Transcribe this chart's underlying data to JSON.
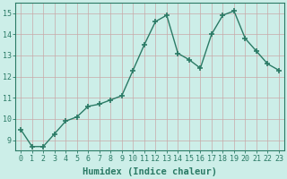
{
  "x": [
    0,
    1,
    2,
    3,
    4,
    5,
    6,
    7,
    8,
    9,
    10,
    11,
    12,
    13,
    14,
    15,
    16,
    17,
    18,
    19,
    20,
    21,
    22,
    23
  ],
  "y": [
    9.5,
    8.7,
    8.7,
    9.3,
    9.9,
    10.1,
    10.6,
    10.7,
    10.9,
    11.1,
    12.3,
    13.5,
    14.6,
    14.9,
    13.1,
    12.8,
    12.4,
    14.0,
    14.9,
    15.1,
    13.8,
    13.2,
    12.6,
    12.3
  ],
  "line_color": "#2a7a65",
  "marker": "+",
  "marker_size": 4,
  "marker_lw": 1.2,
  "bg_color": "#cceee8",
  "grid_color": "#c8a8a8",
  "xlabel": "Humidex (Indice chaleur)",
  "ylim": [
    8.5,
    15.5
  ],
  "xlim": [
    -0.5,
    23.5
  ],
  "yticks": [
    9,
    10,
    11,
    12,
    13,
    14,
    15
  ],
  "xticks": [
    0,
    1,
    2,
    3,
    4,
    5,
    6,
    7,
    8,
    9,
    10,
    11,
    12,
    13,
    14,
    15,
    16,
    17,
    18,
    19,
    20,
    21,
    22,
    23
  ],
  "tick_fontsize": 6,
  "xlabel_fontsize": 7.5,
  "line_width": 1.0
}
